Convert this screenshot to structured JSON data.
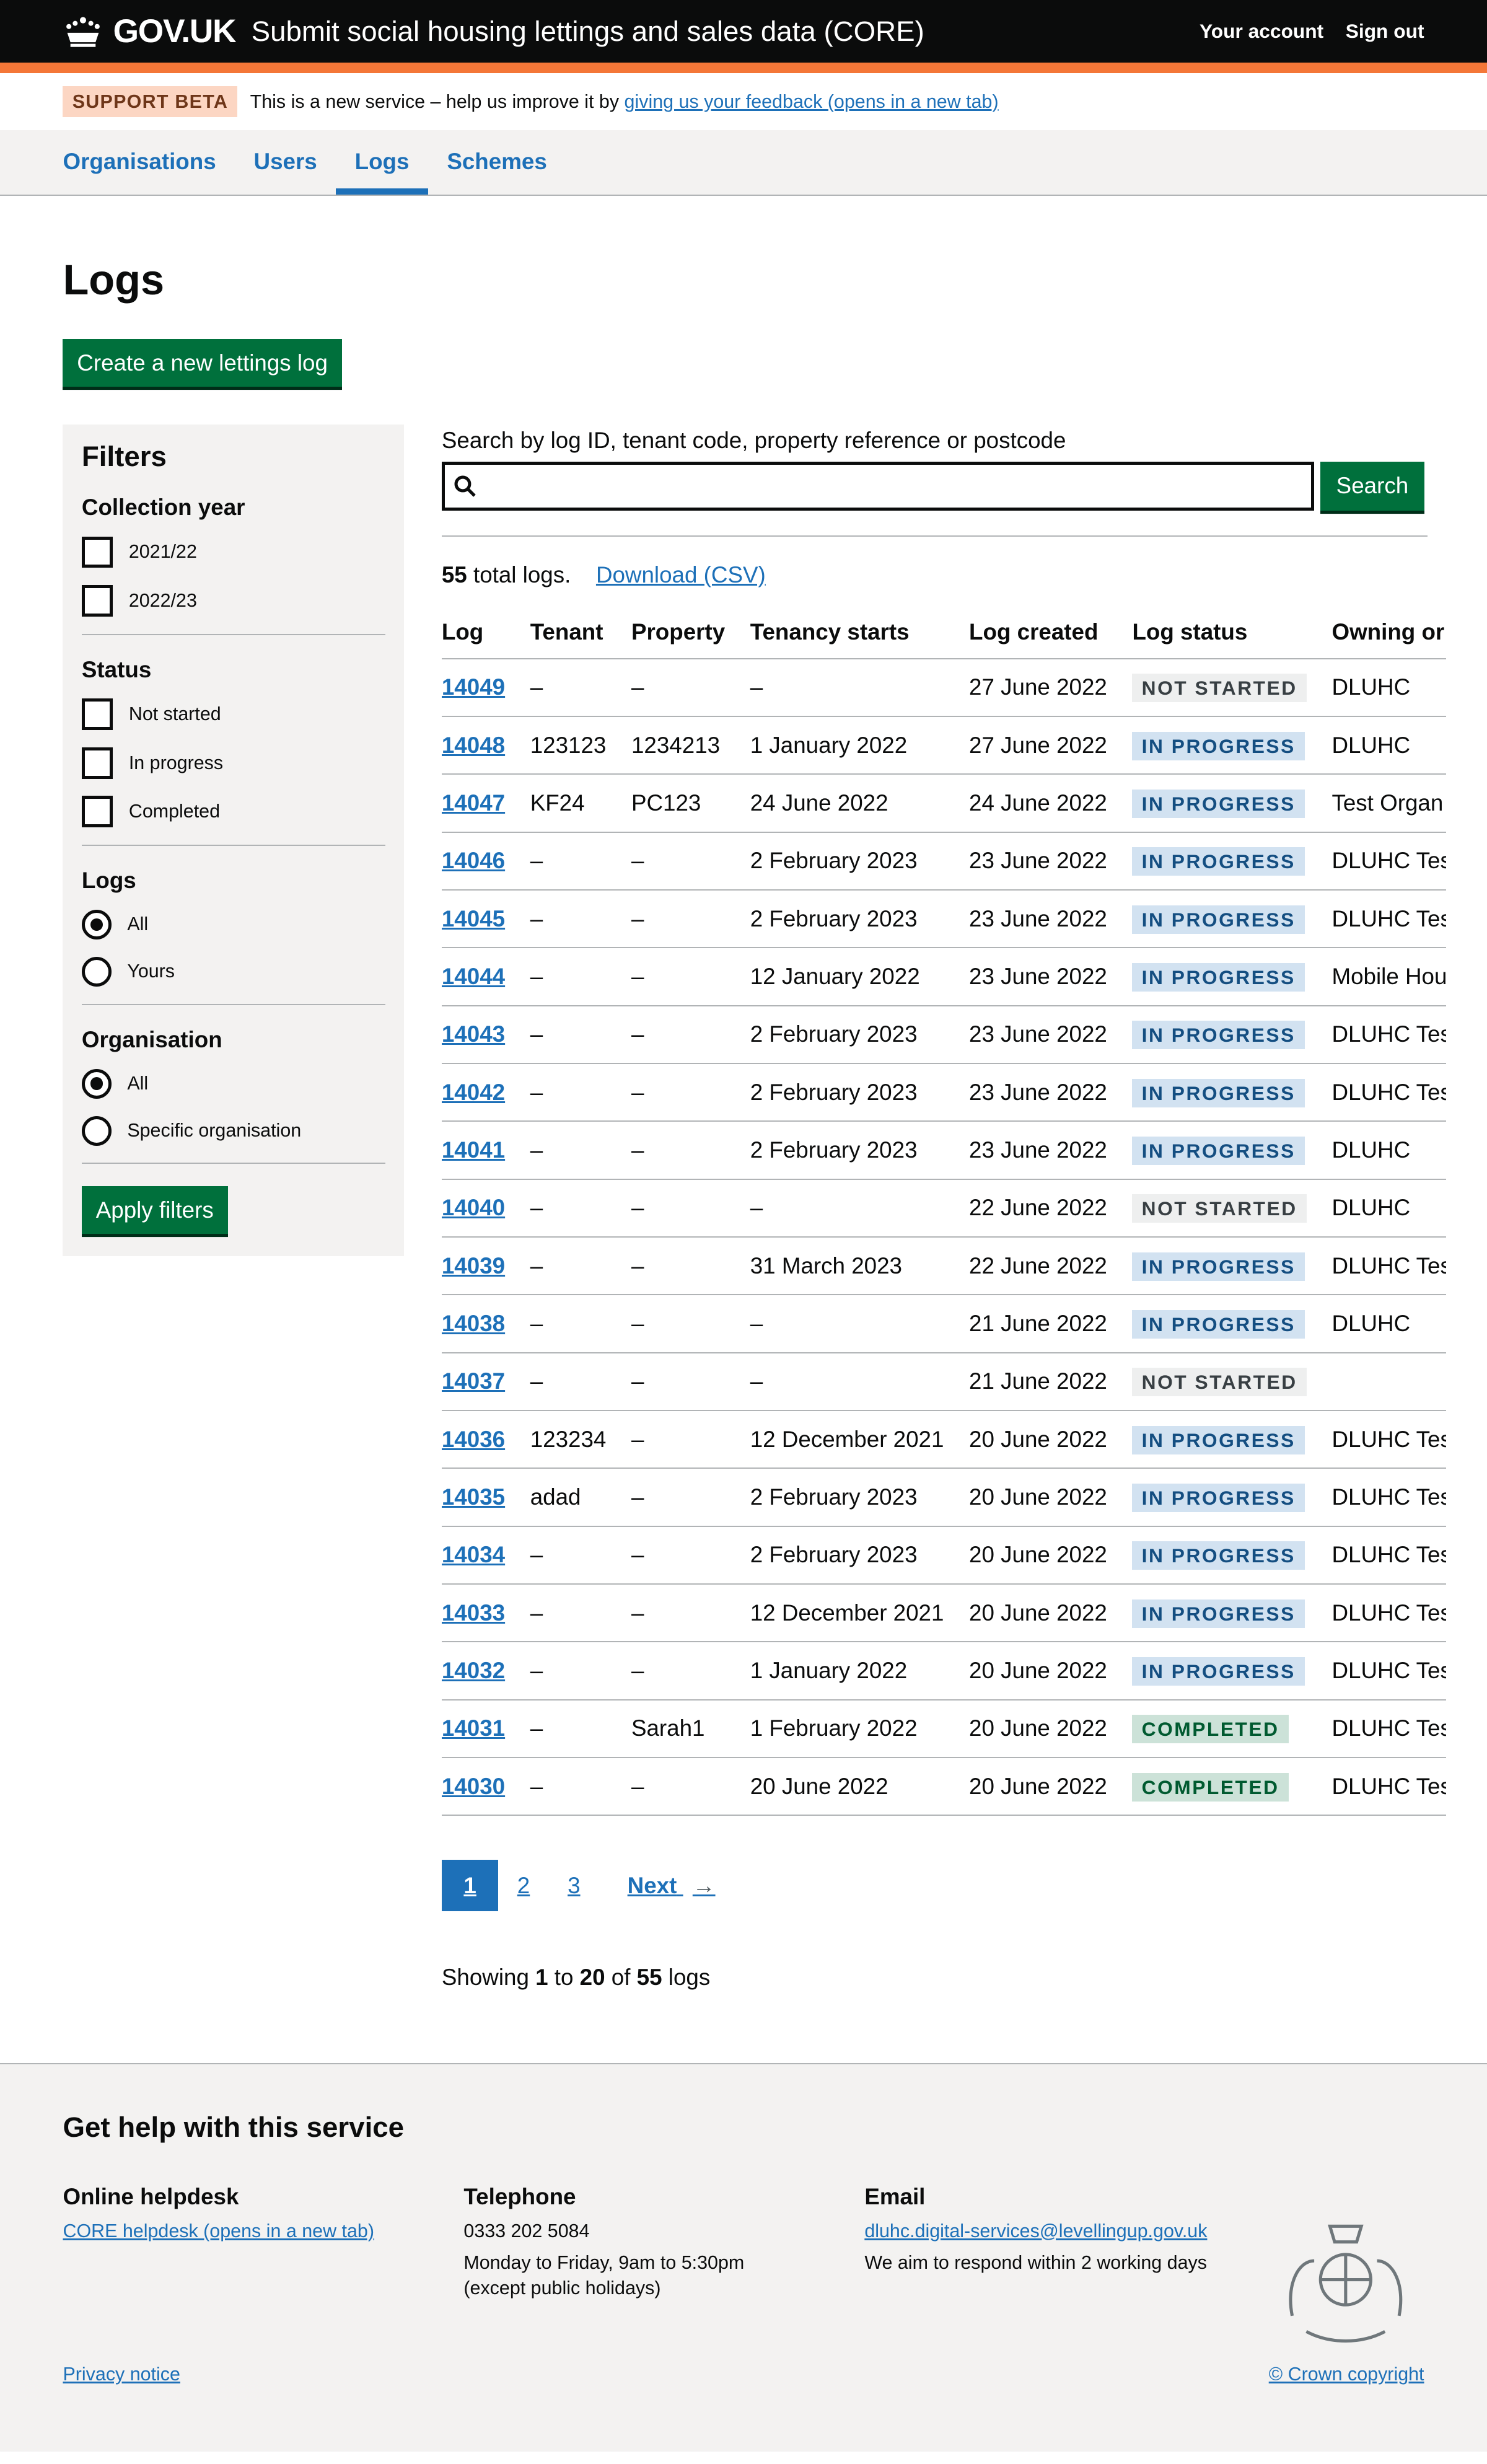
{
  "header": {
    "logo": "GOV.UK",
    "service": "Submit social housing lettings and sales data (CORE)",
    "account": "Your account",
    "signout": "Sign out"
  },
  "beta": {
    "tag": "SUPPORT BETA",
    "text": "This is a new service – help us improve it by ",
    "link": "giving us your feedback (opens in a new tab)"
  },
  "nav": [
    {
      "label": "Organisations"
    },
    {
      "label": "Users"
    },
    {
      "label": "Logs",
      "active": true
    },
    {
      "label": "Schemes"
    }
  ],
  "page": {
    "title": "Logs",
    "create": "Create a new lettings log"
  },
  "filters": {
    "title": "Filters",
    "groups": [
      {
        "title": "Collection year",
        "type": "checkbox",
        "options": [
          {
            "label": "2021/22"
          },
          {
            "label": "2022/23"
          }
        ]
      },
      {
        "title": "Status",
        "type": "checkbox",
        "options": [
          {
            "label": "Not started"
          },
          {
            "label": "In progress"
          },
          {
            "label": "Completed"
          }
        ]
      },
      {
        "title": "Logs",
        "type": "radio",
        "options": [
          {
            "label": "All",
            "checked": true
          },
          {
            "label": "Yours"
          }
        ]
      },
      {
        "title": "Organisation",
        "type": "radio",
        "options": [
          {
            "label": "All",
            "checked": true
          },
          {
            "label": "Specific organisation"
          }
        ]
      }
    ],
    "apply": "Apply filters"
  },
  "search": {
    "label": "Search by log ID, tenant code, property reference or postcode",
    "value": "",
    "button": "Search"
  },
  "summary": {
    "count": "55",
    "text": " total logs.",
    "download": "Download (CSV)"
  },
  "table": {
    "headers": [
      "Log",
      "Tenant",
      "Property",
      "Tenancy starts",
      "Log created",
      "Log status",
      "Owning or"
    ],
    "rows": [
      [
        "14049",
        "–",
        "–",
        "–",
        "27 June 2022",
        "NOT STARTED",
        "DLUHC"
      ],
      [
        "14048",
        "123123",
        "1234213",
        "1 January 2022",
        "27 June 2022",
        "IN PROGRESS",
        "DLUHC"
      ],
      [
        "14047",
        "KF24",
        "PC123",
        "24 June 2022",
        "24 June 2022",
        "IN PROGRESS",
        "Test Organ"
      ],
      [
        "14046",
        "–",
        "–",
        "2 February 2023",
        "23 June 2022",
        "IN PROGRESS",
        "DLUHC Tes"
      ],
      [
        "14045",
        "–",
        "–",
        "2 February 2023",
        "23 June 2022",
        "IN PROGRESS",
        "DLUHC Tes"
      ],
      [
        "14044",
        "–",
        "–",
        "12 January 2022",
        "23 June 2022",
        "IN PROGRESS",
        "Mobile Hou"
      ],
      [
        "14043",
        "–",
        "–",
        "2 February 2023",
        "23 June 2022",
        "IN PROGRESS",
        "DLUHC Tes"
      ],
      [
        "14042",
        "–",
        "–",
        "2 February 2023",
        "23 June 2022",
        "IN PROGRESS",
        "DLUHC Tes"
      ],
      [
        "14041",
        "–",
        "–",
        "2 February 2023",
        "23 June 2022",
        "IN PROGRESS",
        "DLUHC"
      ],
      [
        "14040",
        "–",
        "–",
        "–",
        "22 June 2022",
        "NOT STARTED",
        "DLUHC"
      ],
      [
        "14039",
        "–",
        "–",
        "31 March 2023",
        "22 June 2022",
        "IN PROGRESS",
        "DLUHC Tes"
      ],
      [
        "14038",
        "–",
        "–",
        "–",
        "21 June 2022",
        "IN PROGRESS",
        "DLUHC"
      ],
      [
        "14037",
        "–",
        "–",
        "–",
        "21 June 2022",
        "NOT STARTED",
        ""
      ],
      [
        "14036",
        "123234",
        "–",
        "12 December 2021",
        "20 June 2022",
        "IN PROGRESS",
        "DLUHC Tes"
      ],
      [
        "14035",
        "adad",
        "–",
        "2 February 2023",
        "20 June 2022",
        "IN PROGRESS",
        "DLUHC Tes"
      ],
      [
        "14034",
        "–",
        "–",
        "2 February 2023",
        "20 June 2022",
        "IN PROGRESS",
        "DLUHC Tes"
      ],
      [
        "14033",
        "–",
        "–",
        "12 December 2021",
        "20 June 2022",
        "IN PROGRESS",
        "DLUHC Tes"
      ],
      [
        "14032",
        "–",
        "–",
        "1 January 2022",
        "20 June 2022",
        "IN PROGRESS",
        "DLUHC Tes"
      ],
      [
        "14031",
        "–",
        "Sarah1",
        "1 February 2022",
        "20 June 2022",
        "COMPLETED",
        "DLUHC Tes"
      ],
      [
        "14030",
        "–",
        "–",
        "20 June 2022",
        "20 June 2022",
        "COMPLETED",
        "DLUHC Tes"
      ]
    ]
  },
  "status_colors": {
    "NOT STARTED": "#eeefef",
    "IN PROGRESS": "#d2e2f1",
    "COMPLETED": "#cce2d8"
  },
  "pagination": {
    "pages": [
      "1",
      "2",
      "3"
    ],
    "current": "1",
    "next": "Next"
  },
  "showing": {
    "a": "Showing ",
    "from": "1",
    "b": " to ",
    "to": "20",
    "c": " of ",
    "total": "55",
    "d": " logs"
  },
  "footer": {
    "title": "Get help with this service",
    "helpdesk": {
      "title": "Online helpdesk",
      "link": "CORE helpdesk (opens in a new tab)"
    },
    "phone": {
      "title": "Telephone",
      "number": "0333 202 5084",
      "hours": "Monday to Friday, 9am to 5:30pm",
      "note": "(except public holidays)"
    },
    "email": {
      "title": "Email",
      "address": "dluhc.digital-services@levellingup.gov.uk",
      "note": "We aim to respond within 2 working days"
    },
    "privacy": "Privacy notice",
    "copyright": "© Crown copyright"
  }
}
